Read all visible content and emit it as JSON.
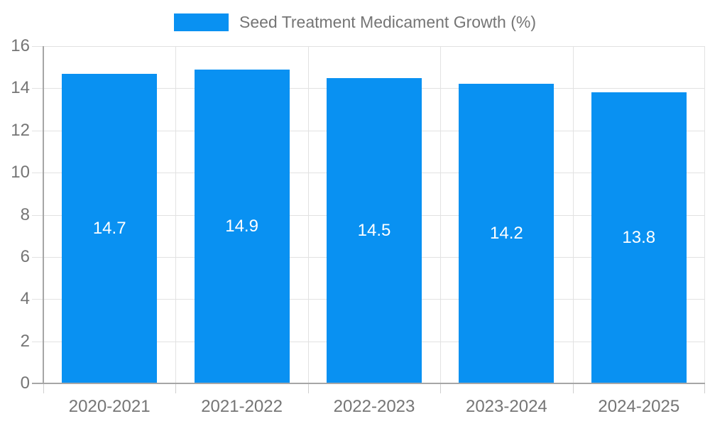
{
  "chart_data": {
    "type": "bar",
    "title": "Seed Treatment Medicament Growth (%)",
    "categories": [
      "2020-2021",
      "2021-2022",
      "2022-2023",
      "2023-2024",
      "2024-2025"
    ],
    "values": [
      14.7,
      14.9,
      14.5,
      14.2,
      13.8
    ],
    "bar_value_labels": [
      "14.7",
      "14.9",
      "14.5",
      "14.2",
      "13.8"
    ],
    "xlabel": "",
    "ylabel": "",
    "ylim": [
      0,
      16
    ],
    "ytick_step": 2,
    "ytick_labels": [
      "0",
      "2",
      "4",
      "6",
      "8",
      "10",
      "12",
      "14",
      "16"
    ],
    "legend_position": "top-center",
    "grid": true,
    "colors": {
      "bar": "#0991f2",
      "bar_label_text": "#ffffff",
      "axis_text": "#757575",
      "legend_text": "#757575",
      "gridline": "#e2e2e2",
      "axis_line": "#a6a6a6",
      "background": "#ffffff"
    }
  }
}
